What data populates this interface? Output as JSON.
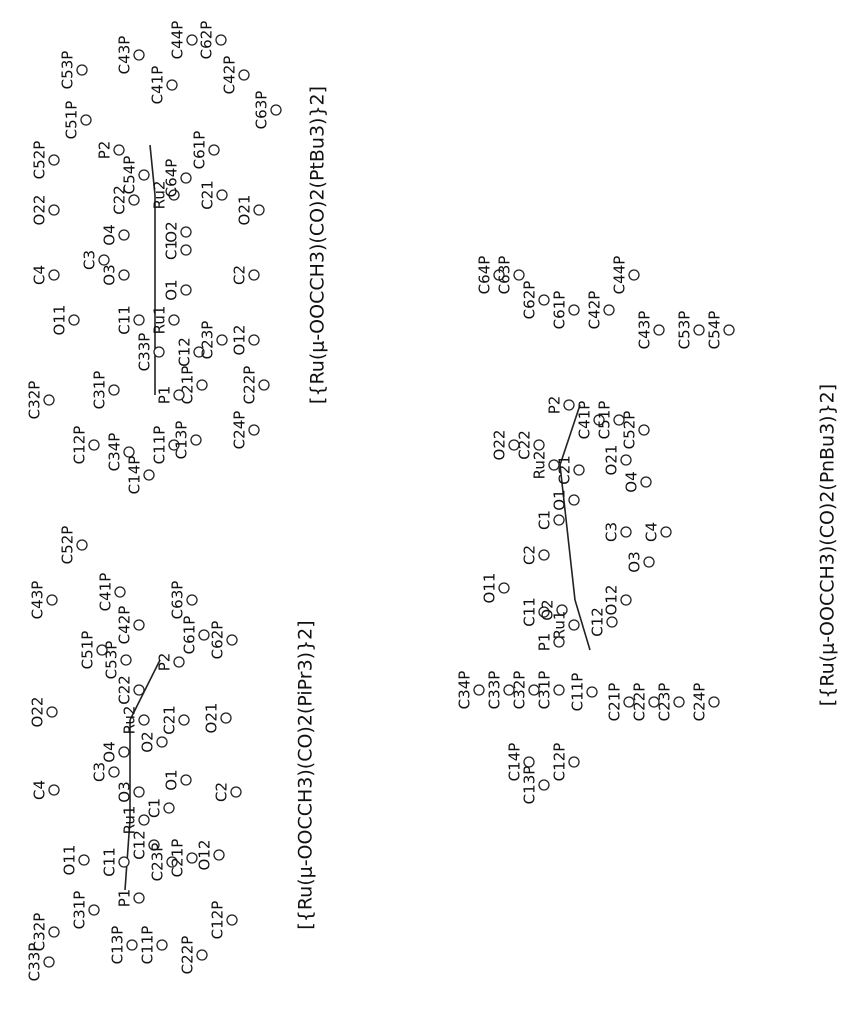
{
  "structures": [
    {
      "caption": "[{Ru(μ-OOCCH3)(CO)2(PtBu3)}2]",
      "atoms": [
        "C52P",
        "C53P",
        "C51P",
        "C43P",
        "C44P",
        "C41P",
        "C62P",
        "C42P",
        "C63P",
        "P2",
        "C54P",
        "C22",
        "O22",
        "C4",
        "C3",
        "O3",
        "O4",
        "Ru2",
        "C64P",
        "C21",
        "C61P",
        "O21",
        "C1",
        "O2",
        "O1",
        "C2",
        "O11",
        "C11",
        "Ru1",
        "C33P",
        "C12",
        "C21P",
        "C23P",
        "O12",
        "C22P",
        "C32P",
        "C31P",
        "P1",
        "C12P",
        "C34P",
        "C11P",
        "C13P",
        "C24P",
        "C14P"
      ]
    },
    {
      "caption": "[{Ru(μ-OOCCH3)(CO)2(PiPr3)}2]",
      "atoms": [
        "C52P",
        "C43P",
        "C41P",
        "C42P",
        "C63P",
        "C51P",
        "C53P",
        "C22",
        "O22",
        "P2",
        "C61P",
        "C62P",
        "Ru2",
        "C4",
        "O4",
        "C3",
        "O3",
        "Ru1",
        "C1",
        "O2",
        "C21",
        "O21",
        "O1",
        "C2",
        "O11",
        "C11",
        "C32P",
        "C31P",
        "P1",
        "C12",
        "C23P",
        "C21P",
        "O12",
        "C33P",
        "C13P",
        "C11P",
        "C22P",
        "C12P"
      ]
    },
    {
      "caption": "[{Ru(μ-OOCCH3)(CO)2(PnBu3)}2]",
      "atoms": [
        "C64P",
        "C63P",
        "C62P",
        "C61P",
        "C42P",
        "C44P",
        "C43P",
        "C53P",
        "C54P",
        "O22",
        "C22",
        "P2",
        "Ru2",
        "C21",
        "C41P",
        "C51P",
        "O21",
        "C52P",
        "O4",
        "C4",
        "C3",
        "C1",
        "O1",
        "C2",
        "O3",
        "O11",
        "C11",
        "O2",
        "Ru1",
        "C12",
        "O12",
        "C34P",
        "C33P",
        "C32P",
        "C31P",
        "P1",
        "C14P",
        "C13P",
        "C12P",
        "C11P",
        "C21P",
        "C22P",
        "C23P",
        "C24P"
      ]
    }
  ]
}
